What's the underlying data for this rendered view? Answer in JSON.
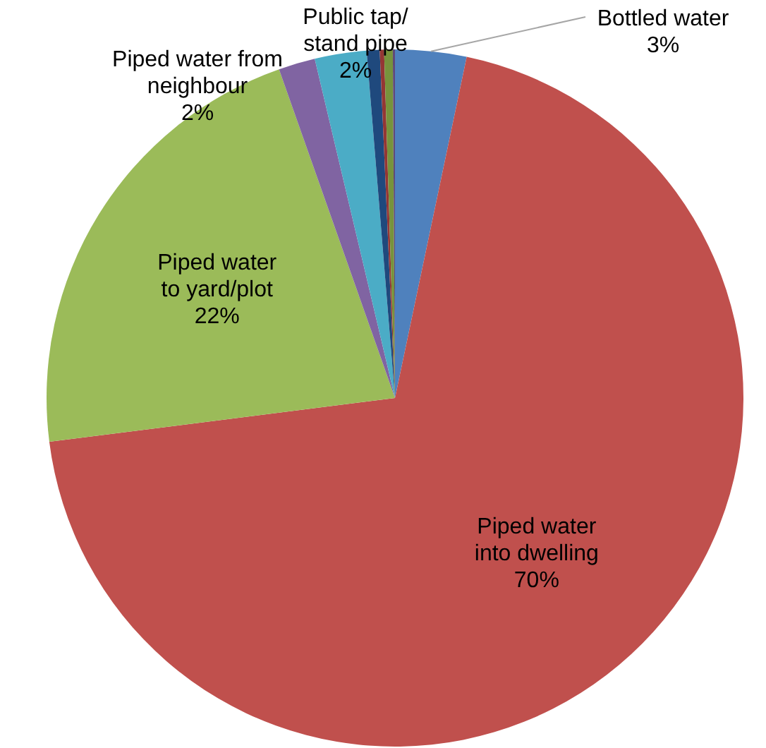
{
  "chart_data": {
    "type": "pie",
    "categories": [
      "Bottled water",
      "Piped water\ninto dwelling",
      "Piped water\nto yard/plot",
      "Piped water from\nneighbour",
      "Public tap/\nstand pipe",
      null,
      null,
      null,
      null
    ],
    "values": [
      3.3,
      69.7,
      21.6,
      1.7,
      2.4,
      0.6,
      0.2,
      0.4,
      0.1
    ],
    "value_labels": [
      "3%",
      "70%",
      "22%",
      "2%",
      "2%",
      null,
      null,
      null,
      null
    ],
    "colors": [
      "#4f81bd",
      "#c0504d",
      "#9bbb59",
      "#8064a2",
      "#4bacc6",
      "#1f497d",
      "#943634",
      "#77933c",
      "#5f497a"
    ]
  }
}
